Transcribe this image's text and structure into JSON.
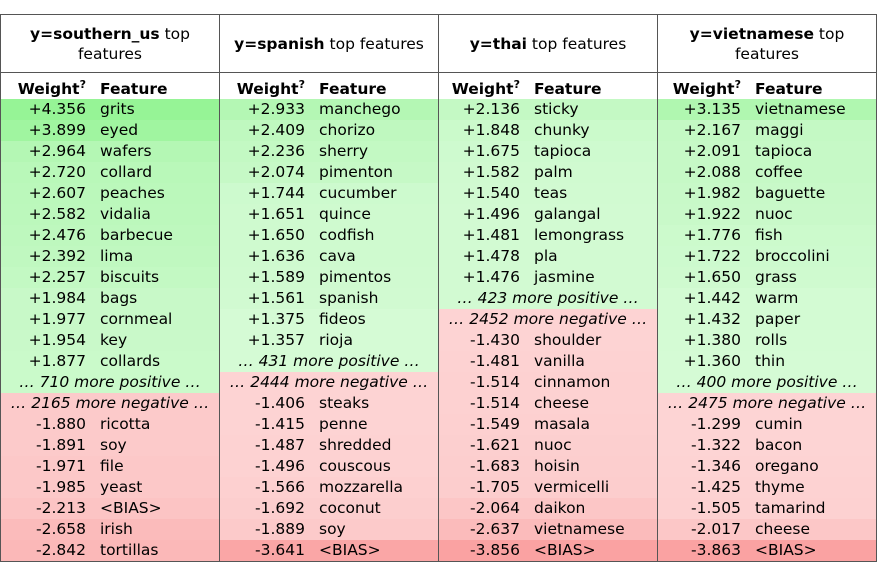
{
  "tables": [
    {
      "target": "y=southern_us",
      "suffix": " top features",
      "weight_label": "Weight",
      "help_mark": "?",
      "feature_label": "Feature",
      "rows": [
        {
          "w": "+4.356",
          "f": "grits",
          "c": "#96f496"
        },
        {
          "w": "+3.899",
          "f": "eyed",
          "c": "#a0f5a0"
        },
        {
          "w": "+2.964",
          "f": "wafers",
          "c": "#b4f7b4"
        },
        {
          "w": "+2.720",
          "f": "collard",
          "c": "#b9f8b9"
        },
        {
          "w": "+2.607",
          "f": "peaches",
          "c": "#bbf8bb"
        },
        {
          "w": "+2.582",
          "f": "vidalia",
          "c": "#bcf8bc"
        },
        {
          "w": "+2.476",
          "f": "barbecue",
          "c": "#bef8be"
        },
        {
          "w": "+2.392",
          "f": "lima",
          "c": "#c0f8c0"
        },
        {
          "w": "+2.257",
          "f": "biscuits",
          "c": "#c3f9c3"
        },
        {
          "w": "+1.984",
          "f": "bags",
          "c": "#c8f9c8"
        },
        {
          "w": "+1.977",
          "f": "cornmeal",
          "c": "#c8f9c8"
        },
        {
          "w": "+1.954",
          "f": "key",
          "c": "#c9f9c9"
        },
        {
          "w": "+1.877",
          "f": "collards",
          "c": "#cafaca"
        },
        {
          "more": "… 710 more positive …",
          "c": "#cafaca"
        },
        {
          "more": "… 2165 more negative …",
          "c": "#fccaca"
        },
        {
          "w": "-1.880",
          "f": "ricotta",
          "c": "#fccaca"
        },
        {
          "w": "-1.891",
          "f": "soy",
          "c": "#fccaca"
        },
        {
          "w": "-1.971",
          "f": "file",
          "c": "#fcc8c8"
        },
        {
          "w": "-1.985",
          "f": "yeast",
          "c": "#fcc8c8"
        },
        {
          "w": "-2.213",
          "f": "<BIAS>",
          "c": "#fcc4c4"
        },
        {
          "w": "-2.658",
          "f": "irish",
          "c": "#fbbbbb"
        },
        {
          "w": "-2.842",
          "f": "tortillas",
          "c": "#fbb8b8"
        }
      ]
    },
    {
      "target": "y=spanish",
      "suffix": " top features",
      "weight_label": "Weight",
      "help_mark": "?",
      "feature_label": "Feature",
      "rows": [
        {
          "w": "+2.933",
          "f": "manchego",
          "c": "#b4f7b4"
        },
        {
          "w": "+2.409",
          "f": "chorizo",
          "c": "#bff8bf"
        },
        {
          "w": "+2.236",
          "f": "sherry",
          "c": "#c3f9c3"
        },
        {
          "w": "+2.074",
          "f": "pimenton",
          "c": "#c6f9c6"
        },
        {
          "w": "+1.744",
          "f": "cucumber",
          "c": "#cdface"
        },
        {
          "w": "+1.651",
          "f": "quince",
          "c": "#cffacf"
        },
        {
          "w": "+1.650",
          "f": "codfish",
          "c": "#cffacf"
        },
        {
          "w": "+1.636",
          "f": "cava",
          "c": "#cffacf"
        },
        {
          "w": "+1.589",
          "f": "pimentos",
          "c": "#d0fad0"
        },
        {
          "w": "+1.561",
          "f": "spanish",
          "c": "#d1fad1"
        },
        {
          "w": "+1.375",
          "f": "fideos",
          "c": "#d5fbd5"
        },
        {
          "w": "+1.357",
          "f": "rioja",
          "c": "#d5fbd5"
        },
        {
          "more": "… 431 more positive …",
          "c": "#d5fbd5"
        },
        {
          "more": "… 2444 more negative …",
          "c": "#fdd3d3"
        },
        {
          "w": "-1.406",
          "f": "steaks",
          "c": "#fdd3d3"
        },
        {
          "w": "-1.415",
          "f": "penne",
          "c": "#fdd3d3"
        },
        {
          "w": "-1.487",
          "f": "shredded",
          "c": "#fdd2d2"
        },
        {
          "w": "-1.496",
          "f": "couscous",
          "c": "#fdd2d2"
        },
        {
          "w": "-1.566",
          "f": "mozzarella",
          "c": "#fdd0d0"
        },
        {
          "w": "-1.692",
          "f": "coconut",
          "c": "#fcceCe"
        },
        {
          "w": "-1.889",
          "f": "soy",
          "c": "#fccaca"
        },
        {
          "w": "-3.641",
          "f": "<BIAS>",
          "c": "#faa6a6"
        }
      ]
    },
    {
      "target": "y=thai",
      "suffix": " top features",
      "weight_label": "Weight",
      "help_mark": "?",
      "feature_label": "Feature",
      "rows": [
        {
          "w": "+2.136",
          "f": "sticky",
          "c": "#c4f9c4"
        },
        {
          "w": "+1.848",
          "f": "chunky",
          "c": "#cbfacb"
        },
        {
          "w": "+1.675",
          "f": "tapioca",
          "c": "#cefacf"
        },
        {
          "w": "+1.582",
          "f": "palm",
          "c": "#d0fad0"
        },
        {
          "w": "+1.540",
          "f": "teas",
          "c": "#d1fad1"
        },
        {
          "w": "+1.496",
          "f": "galangal",
          "c": "#d2fad2"
        },
        {
          "w": "+1.481",
          "f": "lemongrass",
          "c": "#d2fad2"
        },
        {
          "w": "+1.478",
          "f": "pla",
          "c": "#d2fad2"
        },
        {
          "w": "+1.476",
          "f": "jasmine",
          "c": "#d2fad2"
        },
        {
          "more": "… 423 more positive …",
          "c": "#d2fad2"
        },
        {
          "more": "… 2452 more negative …",
          "c": "#fdd3d3"
        },
        {
          "w": "-1.430",
          "f": "shoulder",
          "c": "#fdd3d3"
        },
        {
          "w": "-1.481",
          "f": "vanilla",
          "c": "#fdd2d2"
        },
        {
          "w": "-1.514",
          "f": "cinnamon",
          "c": "#fdd1d1"
        },
        {
          "w": "-1.514",
          "f": "cheese",
          "c": "#fdd1d1"
        },
        {
          "w": "-1.549",
          "f": "masala",
          "c": "#fdd0d0"
        },
        {
          "w": "-1.621",
          "f": "nuoc",
          "c": "#fccfcf"
        },
        {
          "w": "-1.683",
          "f": "hoisin",
          "c": "#fccece"
        },
        {
          "w": "-1.705",
          "f": "vermicelli",
          "c": "#fccdcd"
        },
        {
          "w": "-2.064",
          "f": "daikon",
          "c": "#fcc6c6"
        },
        {
          "w": "-2.637",
          "f": "vietnamese",
          "c": "#fbbbbb"
        },
        {
          "w": "-3.856",
          "f": "<BIAS>",
          "c": "#faa2a2"
        }
      ]
    },
    {
      "target": "y=vietnamese",
      "suffix": " top features",
      "weight_label": "Weight",
      "help_mark": "?",
      "feature_label": "Feature",
      "rows": [
        {
          "w": "+3.135",
          "f": "vietnamese",
          "c": "#b0f7b0"
        },
        {
          "w": "+2.167",
          "f": "maggi",
          "c": "#c4f9c4"
        },
        {
          "w": "+2.091",
          "f": "tapioca",
          "c": "#c6f9c6"
        },
        {
          "w": "+2.088",
          "f": "coffee",
          "c": "#c6f9c6"
        },
        {
          "w": "+1.982",
          "f": "baguette",
          "c": "#c8f9c8"
        },
        {
          "w": "+1.922",
          "f": "nuoc",
          "c": "#c9f9c9"
        },
        {
          "w": "+1.776",
          "f": "fish",
          "c": "#ccfacc"
        },
        {
          "w": "+1.722",
          "f": "broccolini",
          "c": "#cdface"
        },
        {
          "w": "+1.650",
          "f": "grass",
          "c": "#cffacf"
        },
        {
          "w": "+1.442",
          "f": "warm",
          "c": "#d3fbd3"
        },
        {
          "w": "+1.432",
          "f": "paper",
          "c": "#d3fbd3"
        },
        {
          "w": "+1.380",
          "f": "rolls",
          "c": "#d4fbd4"
        },
        {
          "w": "+1.360",
          "f": "thin",
          "c": "#d5fbd5"
        },
        {
          "more": "… 400 more positive …",
          "c": "#d5fbd5"
        },
        {
          "more": "… 2475 more negative …",
          "c": "#fdd4d4"
        },
        {
          "w": "-1.299",
          "f": "cumin",
          "c": "#fdd4d4"
        },
        {
          "w": "-1.322",
          "f": "bacon",
          "c": "#fdd4d4"
        },
        {
          "w": "-1.346",
          "f": "oregano",
          "c": "#fdd3d3"
        },
        {
          "w": "-1.425",
          "f": "thyme",
          "c": "#fdd2d2"
        },
        {
          "w": "-1.505",
          "f": "tamarind",
          "c": "#fdd1d1"
        },
        {
          "w": "-2.017",
          "f": "cheese",
          "c": "#fcc7c7"
        },
        {
          "w": "-3.863",
          "f": "<BIAS>",
          "c": "#faa2a2"
        }
      ]
    }
  ]
}
